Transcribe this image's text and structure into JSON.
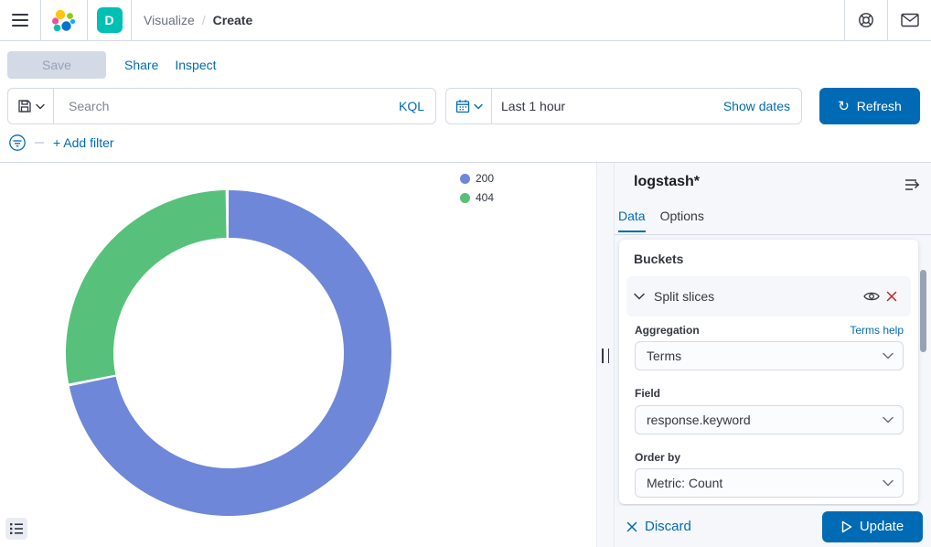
{
  "topbar": {
    "breadcrumbs": [
      "Visualize",
      "Create"
    ],
    "space_initial": "D"
  },
  "toolbar": {
    "save": "Save",
    "share": "Share",
    "inspect": "Inspect"
  },
  "query_bar": {
    "search_placeholder": "Search",
    "language": "KQL",
    "time_range": "Last 1 hour",
    "show_dates": "Show dates",
    "refresh": "Refresh"
  },
  "filter_bar": {
    "add_filter": "+ Add filter"
  },
  "chart_data": {
    "type": "pie",
    "subtype": "donut",
    "categories": [
      "200",
      "404"
    ],
    "values": [
      72,
      28
    ],
    "values_note": "percent of ring, estimated from arc angles (no numeric labels shown)",
    "colors": [
      "#6F87D8",
      "#57C17B"
    ],
    "start_angle_deg": 0,
    "direction": "clockwise",
    "inner_radius_ratio": 0.71,
    "legend_position": "top-right"
  },
  "panel": {
    "index_pattern": "logstash*",
    "tabs": [
      {
        "label": "Data",
        "active": true
      },
      {
        "label": "Options",
        "active": false
      }
    ],
    "buckets": {
      "heading": "Buckets",
      "bucket_type": "Split slices",
      "fields": [
        {
          "label": "Aggregation",
          "value": "Terms",
          "help_link": "Terms help"
        },
        {
          "label": "Field",
          "value": "response.keyword"
        },
        {
          "label": "Order by",
          "value": "Metric: Count"
        }
      ]
    },
    "footer": {
      "discard": "Discard",
      "update": "Update"
    }
  },
  "colors": {
    "primary": "#006BB4",
    "danger": "#BD271E",
    "space_badge": "#00BFB3",
    "panel_bg": "#F5F7FA",
    "border": "#D3DAE6"
  }
}
